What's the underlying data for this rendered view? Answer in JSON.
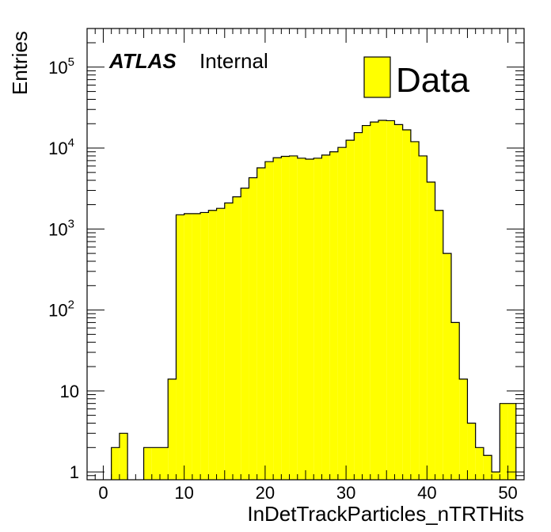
{
  "chart_data": {
    "type": "histogram",
    "xlabel": "InDetTrackParticles_nTRTHits",
    "ylabel": "Entries",
    "xlim": [
      -2,
      52
    ],
    "ylim": [
      0.8,
      300000
    ],
    "yscale": "log",
    "bin_width": 1,
    "bin_start": 0,
    "x_ticks": [
      {
        "value": 0,
        "label": "0"
      },
      {
        "value": 10,
        "label": "10"
      },
      {
        "value": 20,
        "label": "20"
      },
      {
        "value": 30,
        "label": "30"
      },
      {
        "value": 40,
        "label": "40"
      },
      {
        "value": 50,
        "label": "50"
      }
    ],
    "y_ticks": [
      {
        "value": 1,
        "label": "1"
      },
      {
        "value": 10,
        "label": "10"
      },
      {
        "value": 100,
        "base": "10",
        "exp": "2"
      },
      {
        "value": 1000,
        "base": "10",
        "exp": "3"
      },
      {
        "value": 10000,
        "base": "10",
        "exp": "4"
      },
      {
        "value": 100000,
        "base": "10",
        "exp": "5"
      }
    ],
    "series": [
      {
        "name": "Data",
        "fill": "#ffff00",
        "values": [
          0,
          2,
          3,
          0,
          0,
          2,
          2,
          2,
          14,
          1500,
          1550,
          1550,
          1600,
          1700,
          1800,
          2100,
          2500,
          3200,
          4300,
          5700,
          6800,
          7600,
          7900,
          8000,
          7500,
          7300,
          7500,
          8200,
          9000,
          10200,
          12500,
          15500,
          19000,
          21000,
          22000,
          21800,
          19500,
          16800,
          12000,
          8000,
          3800,
          1700,
          500,
          70,
          14,
          4,
          2,
          1.6,
          1,
          7,
          7
        ]
      }
    ]
  },
  "labels": {
    "atlas": "ATLAS",
    "internal": "Internal",
    "legend_entry": "Data"
  }
}
